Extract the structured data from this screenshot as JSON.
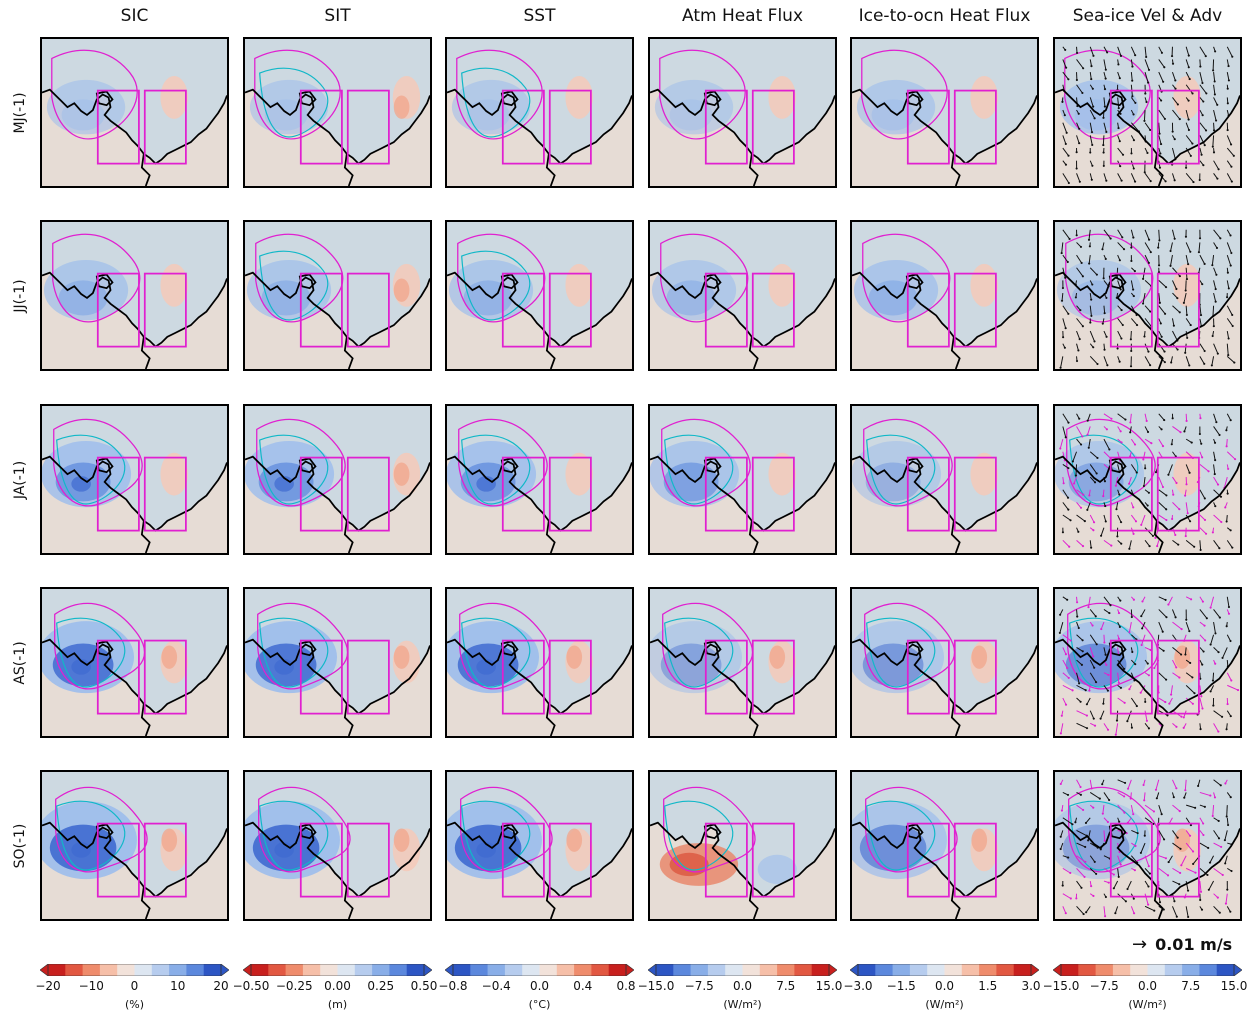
{
  "chart_data": {
    "type": "heatmap",
    "columns": [
      "SIC",
      "SIT",
      "SST",
      "Atm Heat Flux",
      "Ice-to-ocn Heat Flux",
      "Sea-ice Vel & Adv"
    ],
    "rows": [
      "MJ(-1)",
      "JJ(-1)",
      "JA(-1)",
      "AS(-1)",
      "SO(-1)"
    ],
    "colorbars": [
      {
        "ticks": [
          "−20",
          "−10",
          "0",
          "10",
          "20"
        ],
        "range": [
          -20,
          20
        ],
        "unit": "(%)",
        "palette": "red-to-blue"
      },
      {
        "ticks": [
          "−0.50",
          "−0.25",
          "0.00",
          "0.25",
          "0.50"
        ],
        "range": [
          -0.5,
          0.5
        ],
        "unit": "(m)",
        "palette": "red-to-blue"
      },
      {
        "ticks": [
          "−0.8",
          "−0.4",
          "0.0",
          "0.4",
          "0.8"
        ],
        "range": [
          -0.8,
          0.8
        ],
        "unit": "(°C)",
        "palette": "blue-to-red"
      },
      {
        "ticks": [
          "−15.0",
          "−7.5",
          "0.0",
          "7.5",
          "15.0"
        ],
        "range": [
          -15,
          15
        ],
        "unit": "(W/m²)",
        "palette": "blue-to-red"
      },
      {
        "ticks": [
          "−3.0",
          "−1.5",
          "0.0",
          "1.5",
          "3.0"
        ],
        "range": [
          -3,
          3
        ],
        "unit": "(W/m²)",
        "palette": "blue-to-red"
      },
      {
        "ticks": [
          "−15.0",
          "−7.5",
          "0.0",
          "7.5",
          "15.0"
        ],
        "range": [
          -15,
          15
        ],
        "unit": "(W/m²)",
        "palette": "red-to-blue"
      }
    ],
    "reference_vector": {
      "label": "0.01 m/s"
    }
  },
  "colors": {
    "significance_contour_1": "#e020d0",
    "significance_contour_2": "#10b8c8",
    "box_outline": "#e020d0",
    "coastline": "#000000",
    "land": "#e6dcd5",
    "ocean_neutral": "#cdd9e1"
  }
}
